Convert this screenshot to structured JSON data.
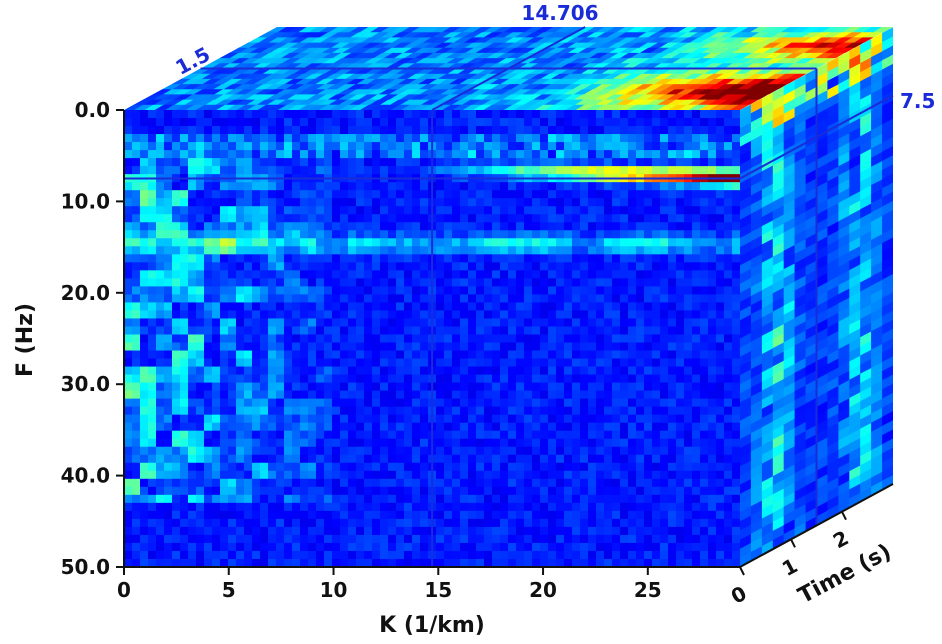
{
  "chart_data": {
    "type": "heatmap",
    "subtype": "3d-cube-slices",
    "x_axis": {
      "label": "K (1/km)",
      "range": [
        0,
        29.4
      ],
      "ticks": [
        "0",
        "5",
        "10",
        "15",
        "20",
        "25"
      ],
      "tick_values": [
        0,
        5,
        10,
        15,
        20,
        25
      ]
    },
    "y_axis": {
      "label": "F (Hz)",
      "range": [
        0,
        50
      ],
      "ticks": [
        "0.0",
        "10.0",
        "20.0",
        "30.0",
        "40.0",
        "50.0"
      ],
      "tick_values": [
        0,
        10,
        20,
        30,
        40,
        50
      ]
    },
    "z_axis": {
      "label": "Time (s)",
      "range": [
        0,
        3
      ],
      "ticks": [
        "0",
        "1",
        "2"
      ],
      "tick_values": [
        0,
        1,
        2
      ]
    },
    "slice_positions": {
      "k": "14.706",
      "f": "7.5",
      "t": "1.5"
    },
    "colormap": [
      "#00008f",
      "#0000ff",
      "#00ffff",
      "#ffff00",
      "#ff0000",
      "#800000"
    ],
    "slice_color": "#1a2bd8",
    "grid": false
  }
}
